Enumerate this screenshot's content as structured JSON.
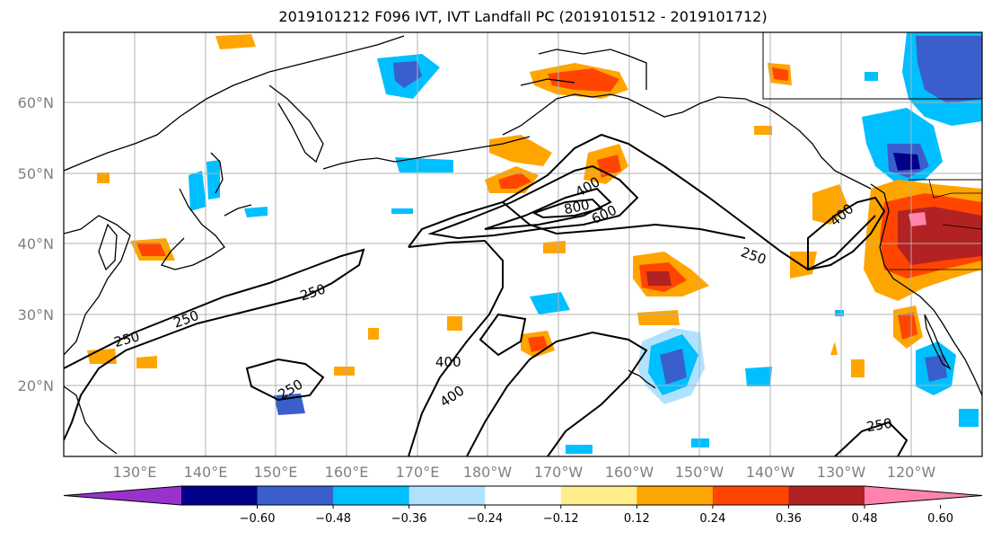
{
  "title": "2019101212 F096 IVT, IVT Landfall PC (2019101512 - 2019101712)",
  "map": {
    "lat_labels": [
      "60°N",
      "50°N",
      "40°N",
      "30°N",
      "20°N"
    ],
    "lon_labels": [
      "130°E",
      "140°E",
      "150°E",
      "160°E",
      "170°E",
      "180°W",
      "170°W",
      "160°W",
      "150°W",
      "140°W",
      "130°W",
      "120°W"
    ],
    "contour_labels": [
      "400",
      "800",
      "600",
      "400",
      "250",
      "250",
      "250",
      "250",
      "250",
      "400",
      "400",
      "250"
    ]
  },
  "colorbar": {
    "ticks": [
      "−0.60",
      "−0.48",
      "−0.36",
      "−0.24",
      "−0.12",
      "0.12",
      "0.24",
      "0.36",
      "0.48",
      "0.60"
    ],
    "colors": [
      "#9932cc",
      "#00008b",
      "#3a5fcd",
      "#00bfff",
      "#b0e2ff",
      "#ffffff",
      "#ffec8b",
      "#ffa500",
      "#ff4500",
      "#b22222",
      "#ff83ac"
    ]
  }
}
